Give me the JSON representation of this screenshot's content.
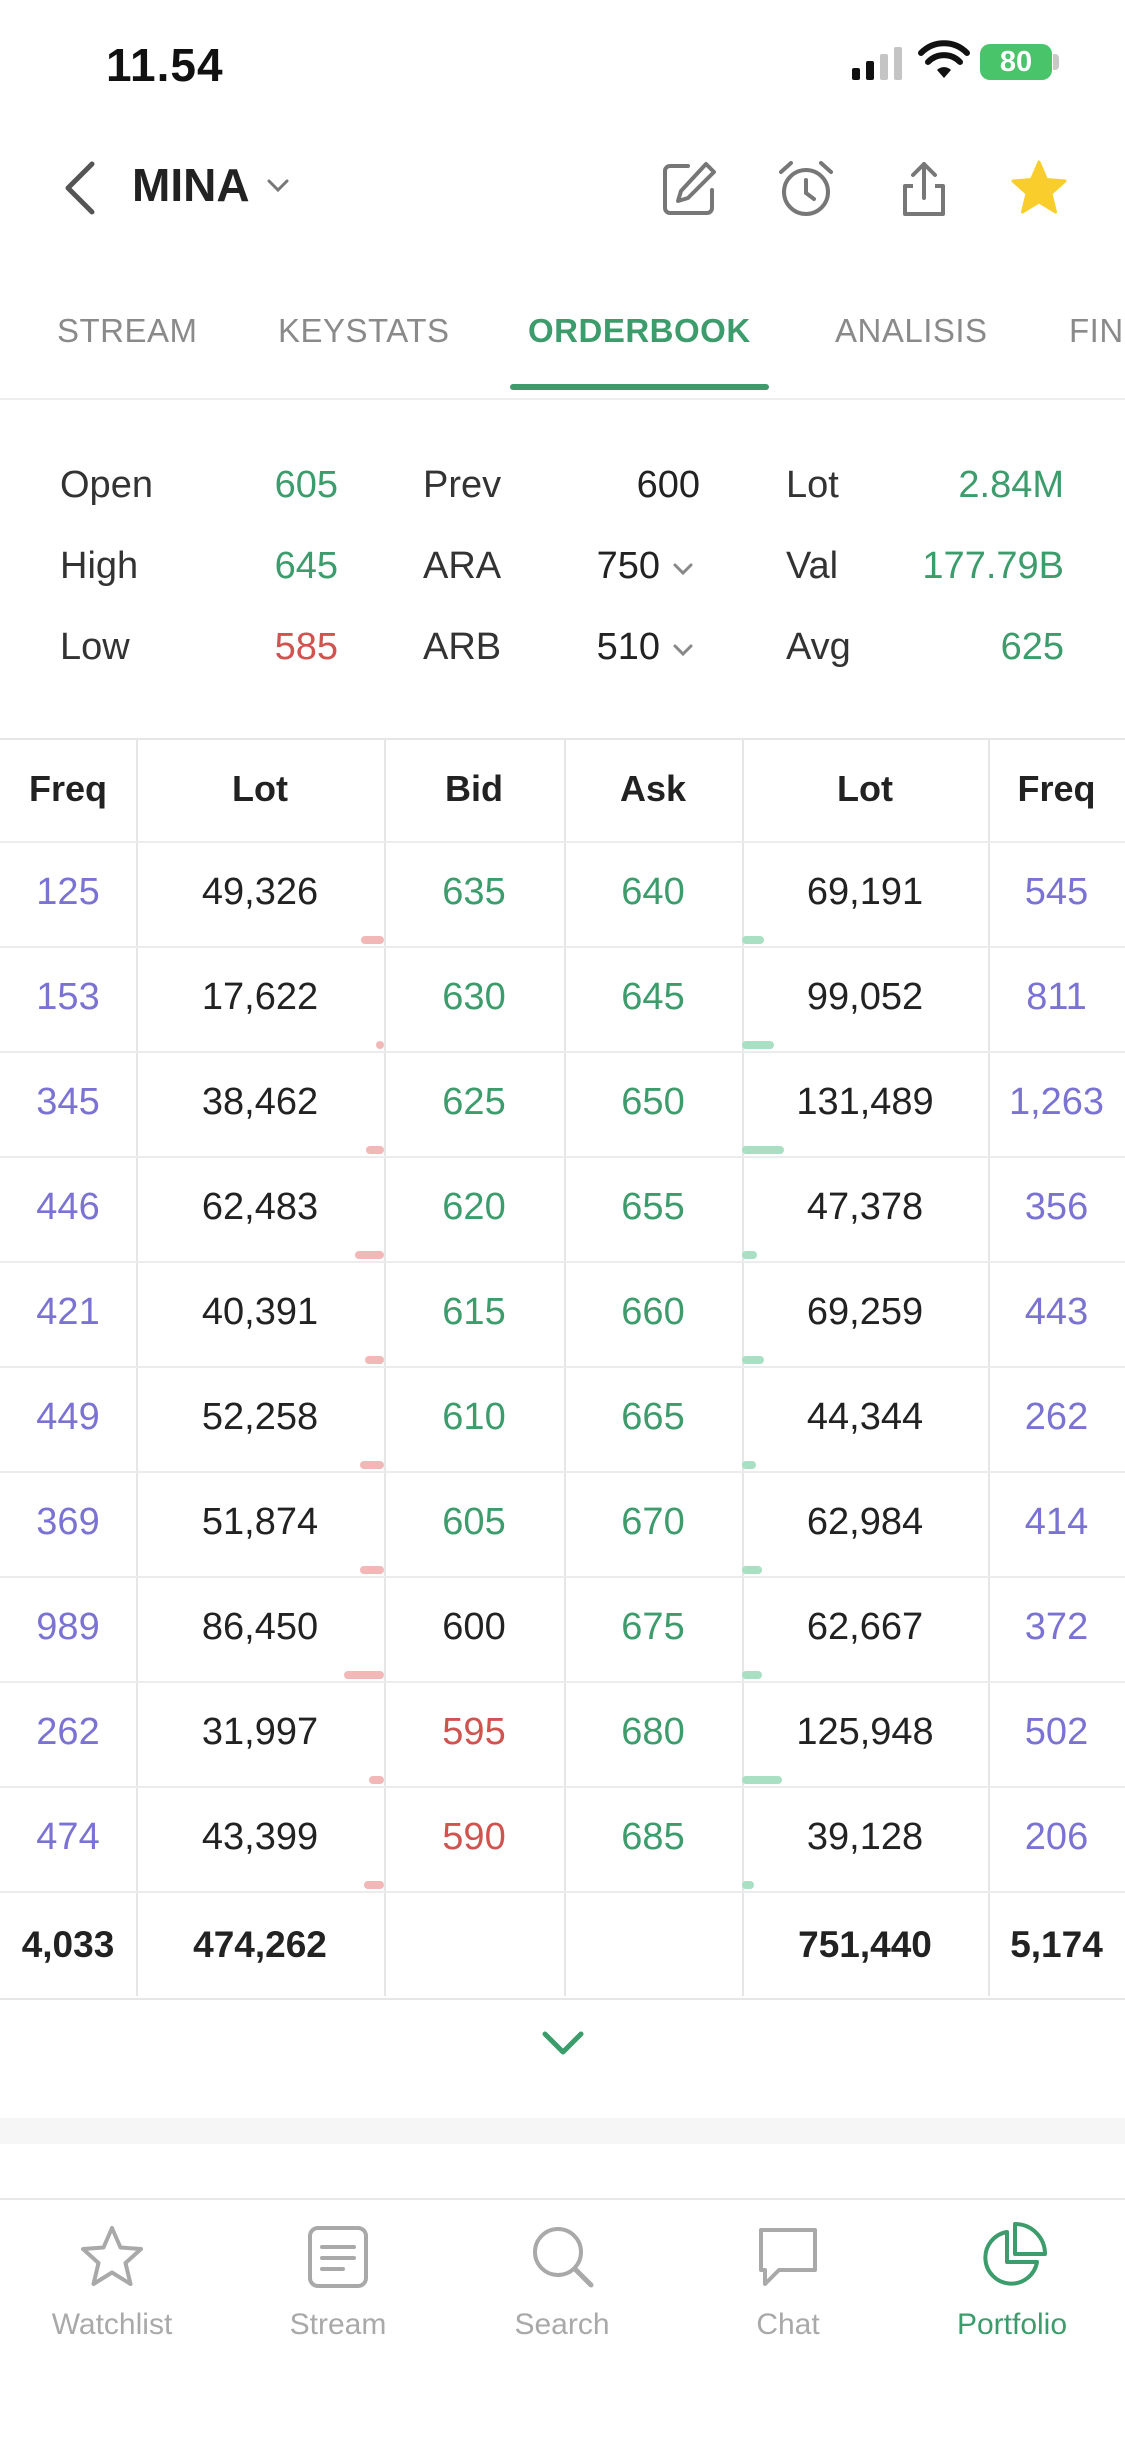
{
  "status_bar": {
    "time": "11.54",
    "battery": "80"
  },
  "header": {
    "ticker": "MINA"
  },
  "tabs": [
    {
      "label": "STREAM",
      "active": false
    },
    {
      "label": "KEYSTATS",
      "active": false
    },
    {
      "label": "ORDERBOOK",
      "active": true
    },
    {
      "label": "ANALISIS",
      "active": false
    },
    {
      "label": "FIN",
      "active": false
    }
  ],
  "stats": {
    "open": {
      "label": "Open",
      "value": "605"
    },
    "high": {
      "label": "High",
      "value": "645"
    },
    "low": {
      "label": "Low",
      "value": "585"
    },
    "prev": {
      "label": "Prev",
      "value": "600"
    },
    "ara": {
      "label": "ARA",
      "value": "750"
    },
    "arb": {
      "label": "ARB",
      "value": "510"
    },
    "lot": {
      "label": "Lot",
      "value": "2.84M"
    },
    "val": {
      "label": "Val",
      "value": "177.79B"
    },
    "avg": {
      "label": "Avg",
      "value": "625"
    }
  },
  "orderbook": {
    "headers": [
      "Freq",
      "Lot",
      "Bid",
      "Ask",
      "Lot",
      "Freq"
    ],
    "rows": [
      {
        "bid_freq": "125",
        "bid_lot": "49,326",
        "bid": "635",
        "ask": "640",
        "ask_lot": "69,191",
        "ask_freq": "545",
        "bid_color": "green"
      },
      {
        "bid_freq": "153",
        "bid_lot": "17,622",
        "bid": "630",
        "ask": "645",
        "ask_lot": "99,052",
        "ask_freq": "811",
        "bid_color": "green"
      },
      {
        "bid_freq": "345",
        "bid_lot": "38,462",
        "bid": "625",
        "ask": "650",
        "ask_lot": "131,489",
        "ask_freq": "1,263",
        "bid_color": "green"
      },
      {
        "bid_freq": "446",
        "bid_lot": "62,483",
        "bid": "620",
        "ask": "655",
        "ask_lot": "47,378",
        "ask_freq": "356",
        "bid_color": "green"
      },
      {
        "bid_freq": "421",
        "bid_lot": "40,391",
        "bid": "615",
        "ask": "660",
        "ask_lot": "69,259",
        "ask_freq": "443",
        "bid_color": "green"
      },
      {
        "bid_freq": "449",
        "bid_lot": "52,258",
        "bid": "610",
        "ask": "665",
        "ask_lot": "44,344",
        "ask_freq": "262",
        "bid_color": "green"
      },
      {
        "bid_freq": "369",
        "bid_lot": "51,874",
        "bid": "605",
        "ask": "670",
        "ask_lot": "62,984",
        "ask_freq": "414",
        "bid_color": "green"
      },
      {
        "bid_freq": "989",
        "bid_lot": "86,450",
        "bid": "600",
        "ask": "675",
        "ask_lot": "62,667",
        "ask_freq": "372",
        "bid_color": "dark"
      },
      {
        "bid_freq": "262",
        "bid_lot": "31,997",
        "bid": "595",
        "ask": "680",
        "ask_lot": "125,948",
        "ask_freq": "502",
        "bid_color": "red"
      },
      {
        "bid_freq": "474",
        "bid_lot": "43,399",
        "bid": "590",
        "ask": "685",
        "ask_lot": "39,128",
        "ask_freq": "206",
        "bid_color": "red"
      }
    ],
    "totals": {
      "bid_freq": "4,033",
      "bid_lot": "474,262",
      "ask_lot": "751,440",
      "ask_freq": "5,174"
    }
  },
  "bottom_nav": [
    {
      "label": "Watchlist",
      "icon": "star-icon",
      "active": false
    },
    {
      "label": "Stream",
      "icon": "stream-icon",
      "active": false
    },
    {
      "label": "Search",
      "icon": "search-icon",
      "active": false
    },
    {
      "label": "Chat",
      "icon": "chat-icon",
      "active": false
    },
    {
      "label": "Portfolio",
      "icon": "pie-chart-icon",
      "active": true
    }
  ],
  "colors": {
    "accent": "#3c9c6c",
    "up": "#3c9c6c",
    "down": "#d0534f",
    "freq": "#7b73d3",
    "star": "#f8cd2c"
  }
}
